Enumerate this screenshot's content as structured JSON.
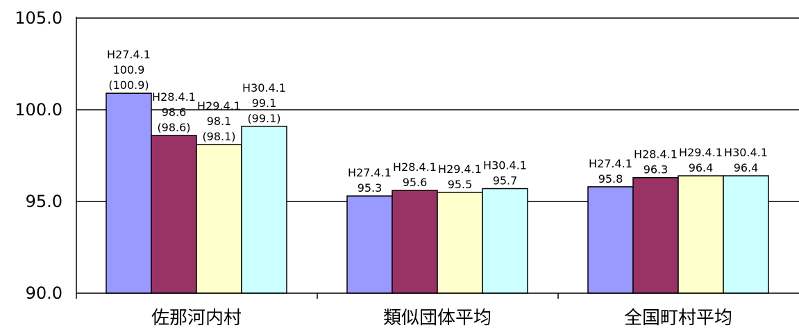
{
  "chart_data": {
    "type": "bar",
    "title": "",
    "xlabel": "",
    "ylabel": "",
    "ylim": [
      90.0,
      105.0
    ],
    "yticks": [
      "90.0",
      "95.0",
      "100.0",
      "105.0"
    ],
    "grid": true,
    "categories": [
      "佐那河内村",
      "類似団体平均",
      "全国町村平均"
    ],
    "series": [
      {
        "name": "H27.4.1",
        "color": "#9999ff"
      },
      {
        "name": "H28.4.1",
        "color": "#993366"
      },
      {
        "name": "H29.4.1",
        "color": "#ffffcc"
      },
      {
        "name": "H30.4.1",
        "color": "#ccffff"
      }
    ],
    "groups": [
      {
        "bars": [
          {
            "date": "H27.4.1",
            "value": 100.9,
            "value_text": "100.9",
            "paren": "(100.9)"
          },
          {
            "date": "H28.4.1",
            "value": 98.6,
            "value_text": "98.6",
            "paren": "(98.6)"
          },
          {
            "date": "H29.4.1",
            "value": 98.1,
            "value_text": "98.1",
            "paren": "(98.1)"
          },
          {
            "date": "H30.4.1",
            "value": 99.1,
            "value_text": "99.1",
            "paren": "(99.1)"
          }
        ]
      },
      {
        "bars": [
          {
            "date": "H27.4.1",
            "value": 95.3,
            "value_text": "95.3",
            "paren": ""
          },
          {
            "date": "H28.4.1",
            "value": 95.6,
            "value_text": "95.6",
            "paren": ""
          },
          {
            "date": "H29.4.1",
            "value": 95.5,
            "value_text": "95.5",
            "paren": ""
          },
          {
            "date": "H30.4.1",
            "value": 95.7,
            "value_text": "95.7",
            "paren": ""
          }
        ]
      },
      {
        "bars": [
          {
            "date": "H27.4.1",
            "value": 95.8,
            "value_text": "95.8",
            "paren": ""
          },
          {
            "date": "H28.4.1",
            "value": 96.3,
            "value_text": "96.3",
            "paren": ""
          },
          {
            "date": "H29.4.1",
            "value": 96.4,
            "value_text": "96.4",
            "paren": ""
          },
          {
            "date": "H30.4.1",
            "value": 96.4,
            "value_text": "96.4",
            "paren": ""
          }
        ]
      }
    ]
  }
}
